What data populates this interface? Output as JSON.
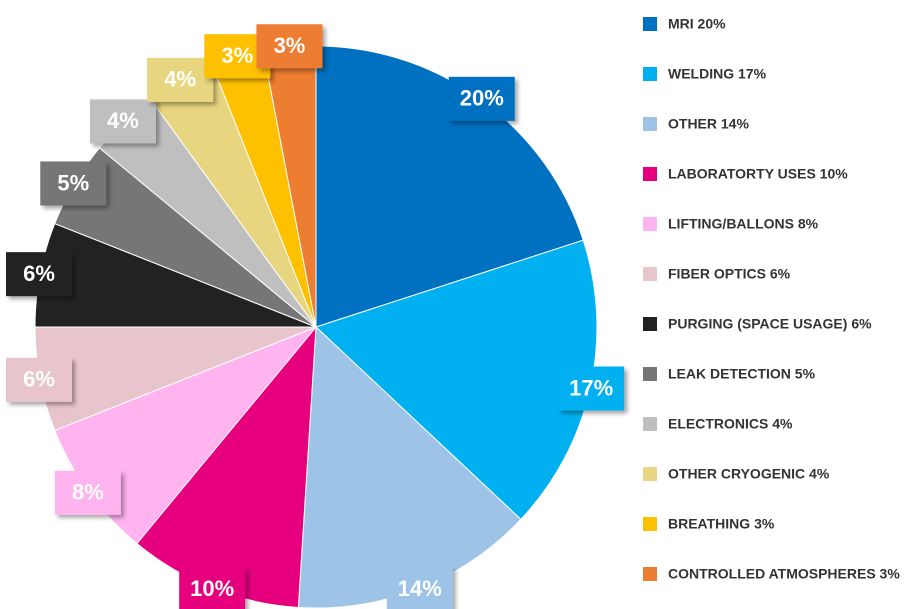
{
  "chart_data": {
    "type": "pie",
    "categories": [
      "MRI 20%",
      "WELDING 17%",
      "OTHER 14%",
      "LABORATORTY USES 10%",
      "LIFTING/BALLONS 8%",
      "FIBER OPTICS 6%",
      "PURGING (SPACE USAGE) 6%",
      "LEAK DETECTION 5%",
      "ELECTRONICS 4%",
      "OTHER CRYOGENIC 4%",
      "BREATHING 3%",
      "CONTROLLED ATMOSPHERES 3%"
    ],
    "values": [
      20,
      17,
      14,
      10,
      8,
      6,
      6,
      5,
      4,
      4,
      3,
      3
    ],
    "value_labels": [
      "20%",
      "17%",
      "14%",
      "10%",
      "8%",
      "6%",
      "6%",
      "5%",
      "4%",
      "4%",
      "3%",
      "3%"
    ],
    "colors": [
      "#0070c0",
      "#00b0f0",
      "#9dc3e6",
      "#e6007e",
      "#ffb3ef",
      "#e8c5cc",
      "#222222",
      "#767676",
      "#bfbfbf",
      "#e8d580",
      "#ffc000",
      "#ed7d31"
    ],
    "legend": "right"
  }
}
